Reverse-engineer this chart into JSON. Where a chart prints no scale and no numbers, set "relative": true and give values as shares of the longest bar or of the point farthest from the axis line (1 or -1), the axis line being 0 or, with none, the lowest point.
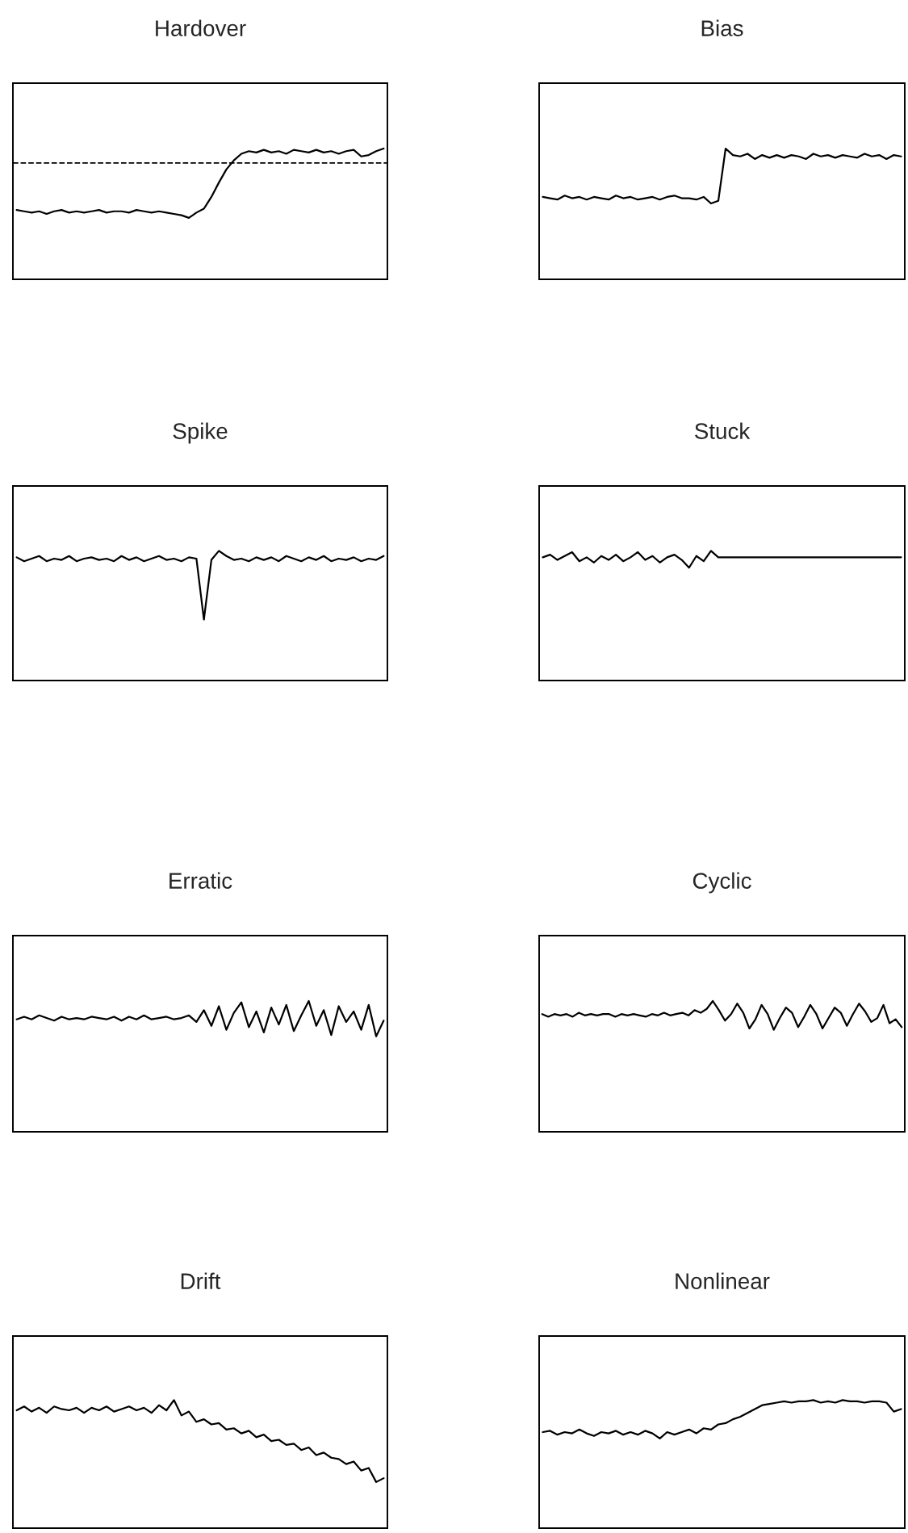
{
  "chart_data": [
    {
      "type": "line",
      "title": "Hardover",
      "relative": true,
      "categories": [
        null,
        null,
        null,
        null,
        null,
        null,
        null,
        null,
        null,
        null,
        null,
        null,
        null,
        null,
        null,
        null,
        null,
        null,
        null,
        null,
        null,
        null,
        null,
        null,
        null,
        null,
        null,
        null,
        null,
        null,
        null,
        null,
        null,
        null,
        null,
        null,
        null,
        null,
        null,
        null,
        null,
        null,
        null,
        null,
        null,
        null,
        null,
        null,
        null,
        null
      ],
      "series": [
        {
          "color": "#000000",
          "values": [
            0.53,
            0.52,
            0.51,
            0.52,
            0.5,
            0.52,
            0.53,
            0.51,
            0.52,
            0.51,
            0.52,
            0.53,
            0.51,
            0.52,
            0.52,
            0.51,
            0.53,
            0.52,
            0.51,
            0.52,
            0.51,
            0.5,
            0.49,
            0.47,
            0.51,
            0.54,
            0.63,
            0.74,
            0.84,
            0.91,
            0.96,
            0.98,
            0.97,
            0.99,
            0.97,
            0.98,
            0.96,
            0.99,
            0.98,
            0.97,
            0.99,
            0.97,
            0.98,
            0.96,
            0.98,
            0.99,
            0.94,
            0.95,
            0.98,
            1
          ]
        }
      ],
      "ref_lines": [
        {
          "axis": "y",
          "value": 0.89,
          "color": "#000000",
          "line_style": "dashed"
        }
      ]
    },
    {
      "type": "line",
      "title": "Bias",
      "relative": true,
      "categories": [
        null,
        null,
        null,
        null,
        null,
        null,
        null,
        null,
        null,
        null,
        null,
        null,
        null,
        null,
        null,
        null,
        null,
        null,
        null,
        null,
        null,
        null,
        null,
        null,
        null,
        null,
        null,
        null,
        null,
        null,
        null,
        null,
        null,
        null,
        null,
        null,
        null,
        null,
        null,
        null,
        null,
        null,
        null,
        null,
        null,
        null,
        null,
        null,
        null,
        null
      ],
      "series": [
        {
          "color": "#000000",
          "values": [
            0.63,
            0.62,
            0.61,
            0.64,
            0.62,
            0.63,
            0.61,
            0.63,
            0.62,
            0.61,
            0.64,
            0.62,
            0.63,
            0.61,
            0.62,
            0.63,
            0.61,
            0.63,
            0.64,
            0.62,
            0.62,
            0.61,
            0.63,
            0.58,
            0.6,
            1,
            0.95,
            0.94,
            0.96,
            0.92,
            0.95,
            0.93,
            0.95,
            0.93,
            0.95,
            0.94,
            0.92,
            0.96,
            0.94,
            0.95,
            0.93,
            0.95,
            0.94,
            0.93,
            0.96,
            0.94,
            0.95,
            0.92,
            0.95,
            0.94
          ]
        }
      ]
    },
    {
      "type": "line",
      "title": "Spike",
      "relative": true,
      "categories": [
        null,
        null,
        null,
        null,
        null,
        null,
        null,
        null,
        null,
        null,
        null,
        null,
        null,
        null,
        null,
        null,
        null,
        null,
        null,
        null,
        null,
        null,
        null,
        null,
        null,
        null,
        null,
        null,
        null,
        null,
        null,
        null,
        null,
        null,
        null,
        null,
        null,
        null,
        null,
        null,
        null,
        null,
        null,
        null,
        null,
        null,
        null,
        null,
        null,
        null
      ],
      "series": [
        {
          "color": "#000000",
          "values": [
            0.95,
            0.92,
            0.94,
            0.96,
            0.92,
            0.94,
            0.93,
            0.96,
            0.92,
            0.94,
            0.95,
            0.93,
            0.94,
            0.92,
            0.96,
            0.93,
            0.95,
            0.92,
            0.94,
            0.96,
            0.93,
            0.94,
            0.92,
            0.95,
            0.94,
            0.47,
            0.93,
            1,
            0.96,
            0.93,
            0.94,
            0.92,
            0.95,
            0.93,
            0.95,
            0.92,
            0.96,
            0.94,
            0.92,
            0.95,
            0.93,
            0.96,
            0.92,
            0.94,
            0.93,
            0.95,
            0.92,
            0.94,
            0.93,
            0.96
          ]
        }
      ]
    },
    {
      "type": "line",
      "title": "Stuck",
      "relative": true,
      "categories": [
        null,
        null,
        null,
        null,
        null,
        null,
        null,
        null,
        null,
        null,
        null,
        null,
        null,
        null,
        null,
        null,
        null,
        null,
        null,
        null,
        null,
        null,
        null,
        null,
        null,
        null,
        null,
        null,
        null,
        null,
        null,
        null,
        null,
        null,
        null,
        null,
        null,
        null,
        null,
        null,
        null,
        null,
        null,
        null,
        null,
        null,
        null,
        null,
        null,
        null
      ],
      "series": [
        {
          "color": "#000000",
          "values": [
            0.95,
            0.97,
            0.93,
            0.96,
            0.99,
            0.92,
            0.95,
            0.91,
            0.96,
            0.93,
            0.97,
            0.92,
            0.95,
            0.99,
            0.93,
            0.96,
            0.91,
            0.95,
            0.97,
            0.93,
            0.87,
            0.96,
            0.92,
            1,
            0.95,
            0.95,
            0.95,
            0.95,
            0.95,
            0.95,
            0.95,
            0.95,
            0.95,
            0.95,
            0.95,
            0.95,
            0.95,
            0.95,
            0.95,
            0.95,
            0.95,
            0.95,
            0.95,
            0.95,
            0.95,
            0.95,
            0.95,
            0.95,
            0.95,
            0.95
          ]
        }
      ]
    },
    {
      "type": "line",
      "title": "Erratic",
      "relative": true,
      "categories": [
        null,
        null,
        null,
        null,
        null,
        null,
        null,
        null,
        null,
        null,
        null,
        null,
        null,
        null,
        null,
        null,
        null,
        null,
        null,
        null,
        null,
        null,
        null,
        null,
        null,
        null,
        null,
        null,
        null,
        null,
        null,
        null,
        null,
        null,
        null,
        null,
        null,
        null,
        null,
        null,
        null,
        null,
        null,
        null,
        null,
        null,
        null,
        null,
        null,
        null
      ],
      "series": [
        {
          "color": "#000000",
          "values": [
            0.86,
            0.88,
            0.86,
            0.89,
            0.87,
            0.85,
            0.88,
            0.86,
            0.87,
            0.86,
            0.88,
            0.87,
            0.86,
            0.88,
            0.85,
            0.88,
            0.86,
            0.89,
            0.86,
            0.87,
            0.88,
            0.86,
            0.87,
            0.89,
            0.84,
            0.93,
            0.81,
            0.96,
            0.78,
            0.91,
            0.99,
            0.8,
            0.92,
            0.76,
            0.95,
            0.82,
            0.97,
            0.77,
            0.89,
            1,
            0.81,
            0.93,
            0.74,
            0.96,
            0.84,
            0.92,
            0.78,
            0.97,
            0.73,
            0.85
          ]
        }
      ]
    },
    {
      "type": "line",
      "title": "Cyclic",
      "relative": true,
      "categories": [
        null,
        null,
        null,
        null,
        null,
        null,
        null,
        null,
        null,
        null,
        null,
        null,
        null,
        null,
        null,
        null,
        null,
        null,
        null,
        null,
        null,
        null,
        null,
        null,
        null,
        null,
        null,
        null,
        null,
        null,
        null,
        null,
        null,
        null,
        null,
        null,
        null,
        null,
        null,
        null,
        null,
        null,
        null,
        null,
        null,
        null,
        null,
        null,
        null,
        null,
        null,
        null,
        null,
        null,
        null,
        null,
        null,
        null,
        null,
        null
      ],
      "series": [
        {
          "color": "#000000",
          "values": [
            0.9,
            0.88,
            0.9,
            0.89,
            0.9,
            0.88,
            0.91,
            0.89,
            0.9,
            0.89,
            0.9,
            0.9,
            0.88,
            0.9,
            0.89,
            0.9,
            0.89,
            0.88,
            0.9,
            0.89,
            0.91,
            0.89,
            0.9,
            0.91,
            0.89,
            0.93,
            0.91,
            0.94,
            1,
            0.93,
            0.85,
            0.9,
            0.98,
            0.91,
            0.79,
            0.86,
            0.97,
            0.9,
            0.78,
            0.87,
            0.95,
            0.91,
            0.8,
            0.88,
            0.97,
            0.9,
            0.79,
            0.87,
            0.95,
            0.91,
            0.81,
            0.9,
            0.98,
            0.92,
            0.84,
            0.87,
            0.97,
            0.83,
            0.86,
            0.8
          ]
        }
      ]
    },
    {
      "type": "line",
      "title": "Drift",
      "relative": true,
      "categories": [
        null,
        null,
        null,
        null,
        null,
        null,
        null,
        null,
        null,
        null,
        null,
        null,
        null,
        null,
        null,
        null,
        null,
        null,
        null,
        null,
        null,
        null,
        null,
        null,
        null,
        null,
        null,
        null,
        null,
        null,
        null,
        null,
        null,
        null,
        null,
        null,
        null,
        null,
        null,
        null,
        null,
        null,
        null,
        null,
        null,
        null,
        null,
        null,
        null,
        null
      ],
      "series": [
        {
          "color": "#000000",
          "values": [
            0.92,
            0.95,
            0.91,
            0.94,
            0.9,
            0.95,
            0.93,
            0.92,
            0.94,
            0.9,
            0.94,
            0.92,
            0.95,
            0.91,
            0.93,
            0.95,
            0.92,
            0.94,
            0.9,
            0.96,
            0.92,
            1,
            0.88,
            0.91,
            0.83,
            0.85,
            0.81,
            0.82,
            0.77,
            0.78,
            0.74,
            0.76,
            0.71,
            0.73,
            0.68,
            0.69,
            0.65,
            0.66,
            0.61,
            0.63,
            0.57,
            0.59,
            0.55,
            0.54,
            0.5,
            0.52,
            0.45,
            0.47,
            0.36,
            0.39
          ]
        }
      ]
    },
    {
      "type": "line",
      "title": "Nonlinear",
      "relative": true,
      "categories": [
        null,
        null,
        null,
        null,
        null,
        null,
        null,
        null,
        null,
        null,
        null,
        null,
        null,
        null,
        null,
        null,
        null,
        null,
        null,
        null,
        null,
        null,
        null,
        null,
        null,
        null,
        null,
        null,
        null,
        null,
        null,
        null,
        null,
        null,
        null,
        null,
        null,
        null,
        null,
        null,
        null,
        null,
        null,
        null,
        null,
        null,
        null,
        null,
        null,
        null
      ],
      "series": [
        {
          "color": "#000000",
          "values": [
            0.75,
            0.76,
            0.73,
            0.75,
            0.74,
            0.77,
            0.74,
            0.72,
            0.75,
            0.74,
            0.76,
            0.73,
            0.75,
            0.73,
            0.76,
            0.74,
            0.7,
            0.75,
            0.73,
            0.75,
            0.77,
            0.74,
            0.78,
            0.77,
            0.81,
            0.82,
            0.85,
            0.87,
            0.9,
            0.93,
            0.96,
            0.97,
            0.98,
            0.99,
            0.98,
            0.99,
            0.99,
            1,
            0.98,
            0.99,
            0.98,
            1,
            0.99,
            0.99,
            0.98,
            0.99,
            0.99,
            0.98,
            0.91,
            0.93
          ]
        }
      ]
    }
  ]
}
